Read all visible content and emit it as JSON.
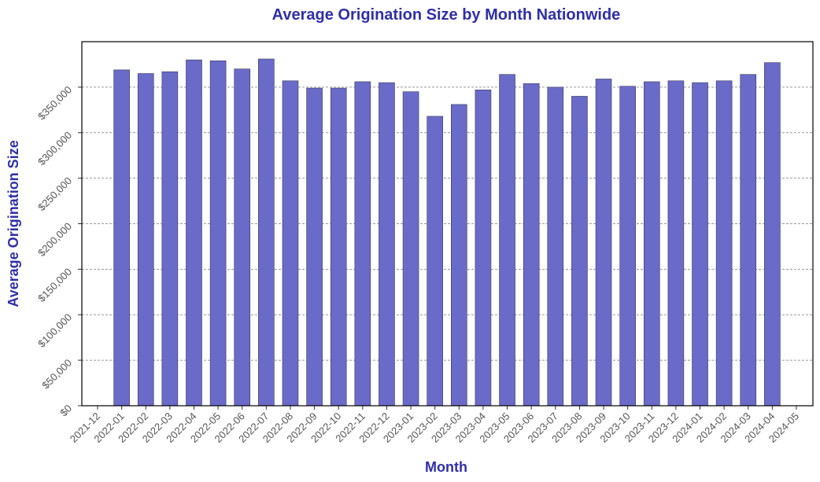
{
  "chart_data": {
    "type": "bar",
    "title": "Average Origination Size by Month Nationwide",
    "xlabel": "Month",
    "ylabel": "Average Origination Size",
    "x_tick_labels": [
      "2021-12",
      "2022-01",
      "2022-02",
      "2022-03",
      "2022-04",
      "2022-05",
      "2022-06",
      "2022-07",
      "2022-08",
      "2022-09",
      "2022-10",
      "2022-11",
      "2022-12",
      "2023-01",
      "2023-02",
      "2023-03",
      "2023-04",
      "2023-05",
      "2023-06",
      "2023-07",
      "2023-08",
      "2023-09",
      "2023-10",
      "2023-11",
      "2023-12",
      "2024-01",
      "2024-02",
      "2024-03",
      "2024-04",
      "2024-05"
    ],
    "categories": [
      "2022-01",
      "2022-02",
      "2022-03",
      "2022-04",
      "2022-05",
      "2022-06",
      "2022-07",
      "2022-08",
      "2022-09",
      "2022-10",
      "2022-11",
      "2022-12",
      "2023-01",
      "2023-02",
      "2023-03",
      "2023-04",
      "2023-05",
      "2023-06",
      "2023-07",
      "2023-08",
      "2023-09",
      "2023-10",
      "2023-11",
      "2023-12",
      "2024-01",
      "2024-02",
      "2024-03",
      "2024-04"
    ],
    "values": [
      369000,
      365000,
      367000,
      380000,
      379000,
      370000,
      381000,
      357000,
      349000,
      349000,
      356000,
      355000,
      345000,
      318000,
      331000,
      347000,
      364000,
      354000,
      350000,
      340000,
      359000,
      351000,
      356000,
      357000,
      355000,
      357000,
      364000,
      377000
    ],
    "ylim": [
      0,
      400000
    ],
    "y_ticks": [
      0,
      50000,
      100000,
      150000,
      200000,
      250000,
      300000,
      350000
    ],
    "y_tick_labels": [
      "$0",
      "$50,000",
      "$100,000",
      "$150,000",
      "$200,000",
      "$250,000",
      "$300,000",
      "$350,000"
    ],
    "grid": "horizontal dashed",
    "colors": {
      "bar": "#6a6ac8",
      "title": "#2f2fa8",
      "axis_label": "#2f2fa8"
    }
  }
}
